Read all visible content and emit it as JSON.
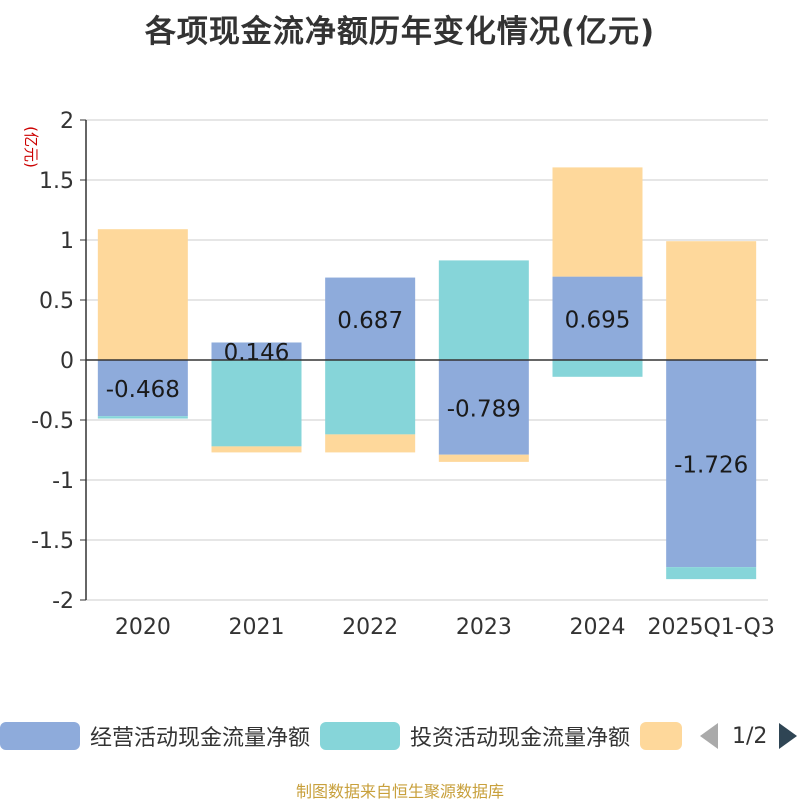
{
  "chart_data": {
    "type": "bar",
    "stacked": true,
    "title": "各项现金流净额历年变化情况(亿元)",
    "ylabel": "(亿元)",
    "xlabel": "",
    "ylim": [
      -2,
      2
    ],
    "yticks": [
      2,
      1.5,
      1,
      0.5,
      0,
      -0.5,
      -1,
      -1.5,
      -2
    ],
    "categories": [
      "2020",
      "2021",
      "2022",
      "2023",
      "2024",
      "2025Q1-Q3"
    ],
    "series": [
      {
        "name": "经营活动现金流量净额",
        "color": "#8eabdb",
        "values": [
          -0.468,
          0.146,
          0.687,
          -0.789,
          0.695,
          -1.726
        ],
        "show_labels": true
      },
      {
        "name": "投资活动现金流量净额",
        "color": "#86d5d9",
        "values": [
          -0.02,
          -0.72,
          -0.62,
          0.83,
          -0.14,
          -0.1
        ],
        "show_labels": false
      },
      {
        "name": "",
        "color": "#fed89b",
        "values": [
          1.09,
          -0.05,
          -0.15,
          -0.06,
          0.91,
          0.99
        ],
        "show_labels": false
      }
    ],
    "legend_position": "bottom",
    "pager": {
      "text": "1/2"
    }
  },
  "source": "制图数据来自恒生聚源数据库"
}
